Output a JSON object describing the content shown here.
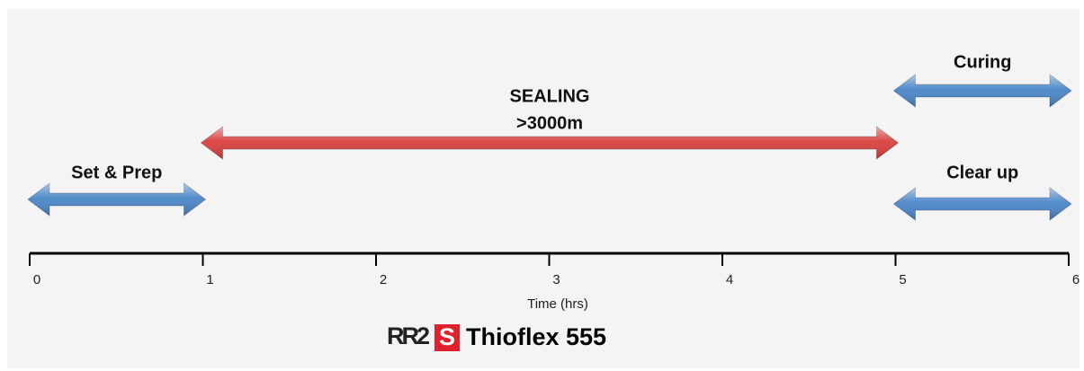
{
  "header": {
    "title": null
  },
  "phases": [
    {
      "label": [
        "Set & Prep"
      ],
      "start": 0,
      "end": 1,
      "color": "#4a86c8"
    },
    {
      "label": [
        "SEALING",
        ">3000m"
      ],
      "start": 1,
      "end": 5,
      "color": "#d9403f"
    },
    {
      "label": [
        "Curing"
      ],
      "start": 5,
      "end": 6,
      "color": "#4a86c8"
    },
    {
      "label": [
        "Clear up"
      ],
      "start": 5,
      "end": 6,
      "color": "#4a86c8"
    }
  ],
  "axis": {
    "ticks": [
      0,
      1,
      2,
      3,
      4,
      5,
      6
    ],
    "label": "Time (hrs)"
  },
  "brand": {
    "logo": [
      "RR2",
      "S"
    ],
    "product": "Thioflex 555"
  }
}
